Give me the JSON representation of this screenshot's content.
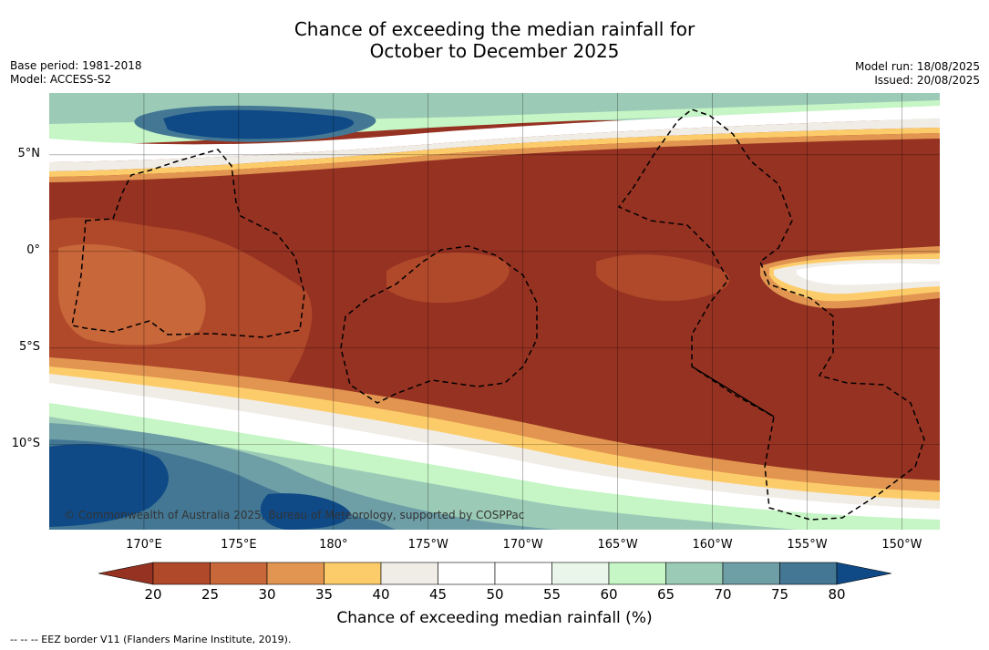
{
  "title_line1": "Chance of exceeding the median rainfall for",
  "title_line2": "October to December 2025",
  "meta_left": {
    "base_period": "Base period: 1981-2018",
    "model": "Model: ACCESS-S2"
  },
  "meta_right": {
    "model_run": "Model run: 18/08/2025",
    "issued": "Issued: 20/08/2025"
  },
  "map": {
    "lon_range": [
      165,
      212
    ],
    "lat_range": [
      -14.4,
      8.2
    ],
    "latitudes": [
      {
        "value": 5,
        "label": "5°N"
      },
      {
        "value": 0,
        "label": "0°"
      },
      {
        "value": -5,
        "label": "5°S"
      },
      {
        "value": -10,
        "label": "10°S"
      }
    ],
    "longitudes": [
      {
        "value": 170,
        "label": "170°E"
      },
      {
        "value": 175,
        "label": "175°E"
      },
      {
        "value": 180,
        "label": "180°"
      },
      {
        "value": 185,
        "label": "175°W"
      },
      {
        "value": 190,
        "label": "170°W"
      },
      {
        "value": 195,
        "label": "165°W"
      },
      {
        "value": 200,
        "label": "160°W"
      },
      {
        "value": 205,
        "label": "155°W"
      },
      {
        "value": 210,
        "label": "150°W"
      }
    ],
    "copyright": "© Commonwealth of Australia 2025, Bureau of Meteorology, supported by COSPPac"
  },
  "colorbar": {
    "label": "Chance of exceeding median rainfall (%)",
    "ticks": [
      "20",
      "25",
      "30",
      "35",
      "40",
      "45",
      "50",
      "55",
      "60",
      "65",
      "70",
      "75",
      "80"
    ],
    "under_color": "#963222",
    "over_color": "#0f4a86",
    "colors": [
      "#b0482a",
      "#c8673a",
      "#e19550",
      "#fdcc6a",
      "#f0ece6",
      "#ffffff",
      "#ffffff",
      "#eaf6ea",
      "#c6f5c6",
      "#9bcbb6",
      "#6e9ea6",
      "#437794"
    ]
  },
  "footnote": "-- -- -- EEZ border V11 (Flanders Marine Institute, 2019)."
}
